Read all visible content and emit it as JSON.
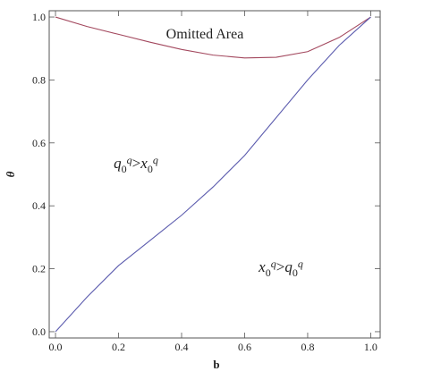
{
  "chart_data": {
    "type": "line",
    "x_label": "b",
    "y_label": "θ",
    "x": [
      0,
      0.1,
      0.2,
      0.3,
      0.4,
      0.5,
      0.6,
      0.7,
      0.8,
      0.9,
      1.0
    ],
    "series": [
      {
        "color": "#a3485e",
        "values": [
          1.0,
          0.97,
          0.945,
          0.92,
          0.897,
          0.879,
          0.87,
          0.872,
          0.89,
          0.935,
          1.0
        ]
      },
      {
        "color": "#5c5cae",
        "values": [
          0,
          0.11,
          0.21,
          0.29,
          0.37,
          0.46,
          0.56,
          0.68,
          0.8,
          0.91,
          1.0
        ]
      }
    ],
    "annotations": [
      "Omitted Area",
      [
        "q",
        "0",
        "q",
        ">",
        "x",
        "0",
        "q"
      ],
      [
        "x",
        "0",
        "q",
        ">",
        "q",
        "0",
        "q"
      ]
    ],
    "xlim": [
      -0.02,
      1.03
    ],
    "ylim": [
      -0.02,
      1.02
    ],
    "xticks": [
      {
        "value": 0,
        "label": "0.0"
      },
      0.2,
      0.4,
      0.6,
      0.8,
      {
        "value": 1,
        "label": "1.0"
      }
    ],
    "yticks": [
      {
        "value": 0,
        "label": "0.0"
      },
      0.2,
      0.4,
      0.6,
      0.8,
      {
        "value": 1,
        "label": "1.0"
      }
    ]
  }
}
